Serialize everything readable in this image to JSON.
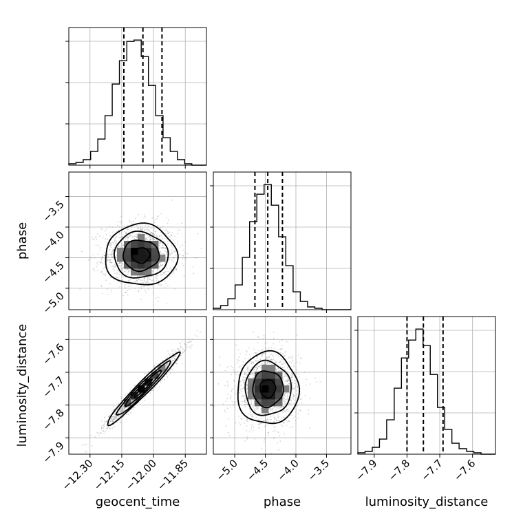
{
  "chart_data": {
    "type": "corner",
    "parameters": [
      "geocent_time",
      "phase",
      "luminosity_distance"
    ],
    "axis_labels": {
      "geocent_time": "geocent_time",
      "phase": "phase",
      "luminosity_distance": "luminosity_distance"
    },
    "ranges": {
      "geocent_time": [
        -12.4,
        -11.75
      ],
      "phase": [
        -5.35,
        -3.1
      ],
      "luminosity_distance": [
        -7.95,
        -7.53
      ]
    },
    "ticks": {
      "geocent_time": [
        -12.3,
        -12.15,
        -12.0,
        -11.85
      ],
      "phase": [
        -5.0,
        -4.5,
        -4.0,
        -3.5
      ],
      "luminosity_distance": [
        -7.9,
        -7.8,
        -7.7,
        -7.6
      ]
    },
    "tick_labels": {
      "geocent_time": [
        "−12.30",
        "−12.15",
        "−12.00",
        "−11.85"
      ],
      "phase": [
        "−5.0",
        "−4.5",
        "−4.0",
        "−3.5"
      ],
      "luminosity_distance": [
        "−7.9",
        "−7.8",
        "−7.7",
        "−7.6"
      ]
    },
    "quantiles": {
      "geocent_time": [
        -12.14,
        -12.05,
        -11.96
      ],
      "phase": [
        -4.67,
        -4.46,
        -4.22
      ],
      "luminosity_distance": [
        -7.8,
        -7.75,
        -7.69
      ]
    },
    "histograms": {
      "geocent_time": {
        "bin_edges": [
          -12.4,
          -12.366,
          -12.332,
          -12.297,
          -12.263,
          -12.229,
          -12.195,
          -12.161,
          -12.126,
          -12.092,
          -12.058,
          -12.024,
          -11.99,
          -11.955,
          -11.921,
          -11.887,
          -11.853,
          -11.819,
          -11.784,
          -11.75
        ],
        "counts": [
          1,
          2,
          4,
          10,
          19,
          36,
          59,
          76,
          90,
          91,
          79,
          58,
          36,
          20,
          10,
          4,
          1,
          0,
          0
        ]
      },
      "phase": {
        "bin_edges": [
          -5.35,
          -5.231,
          -5.113,
          -4.994,
          -4.876,
          -4.757,
          -4.639,
          -4.52,
          -4.402,
          -4.283,
          -4.165,
          -4.046,
          -3.928,
          -3.809,
          -3.691,
          -3.572,
          -3.454,
          -3.335,
          -3.217,
          -3.1
        ],
        "counts": [
          1,
          3,
          8,
          18,
          38,
          64,
          84,
          91,
          76,
          53,
          32,
          13,
          6,
          2,
          1,
          0,
          0,
          0,
          0
        ]
      },
      "luminosity_distance": {
        "bin_edges": [
          -7.95,
          -7.928,
          -7.906,
          -7.884,
          -7.862,
          -7.839,
          -7.817,
          -7.795,
          -7.773,
          -7.751,
          -7.729,
          -7.707,
          -7.685,
          -7.663,
          -7.641,
          -7.618,
          -7.596,
          -7.574,
          -7.552,
          -7.53
        ],
        "counts": [
          1,
          2,
          5,
          11,
          25,
          48,
          70,
          83,
          91,
          79,
          58,
          34,
          18,
          8,
          4,
          2,
          1,
          0,
          0
        ]
      }
    },
    "pairs": [
      {
        "x": "geocent_time",
        "y": "phase",
        "center": [
          -12.06,
          -4.46
        ],
        "sigma": [
          0.085,
          0.25
        ],
        "correlation": 0.0,
        "contour_levels_sigma": [
          0.5,
          1.0,
          1.5,
          2.0
        ],
        "density_peak": [
          -12.08,
          -4.43
        ]
      },
      {
        "x": "geocent_time",
        "y": "luminosity_distance",
        "center": [
          -12.05,
          -7.75
        ],
        "sigma": [
          0.085,
          0.055
        ],
        "correlation": 0.97,
        "contour_levels_sigma": [
          0.5,
          1.0,
          1.5,
          2.0
        ],
        "density_peak": [
          -12.06,
          -7.75
        ]
      },
      {
        "x": "phase",
        "y": "luminosity_distance",
        "center": [
          -4.46,
          -7.75
        ],
        "sigma": [
          0.25,
          0.055
        ],
        "correlation": 0.0,
        "contour_levels_sigma": [
          0.5,
          1.0,
          1.5,
          2.0
        ],
        "density_peak": [
          -4.46,
          -7.75
        ]
      }
    ],
    "grid": true,
    "tick_label_rotation_deg": 45
  }
}
